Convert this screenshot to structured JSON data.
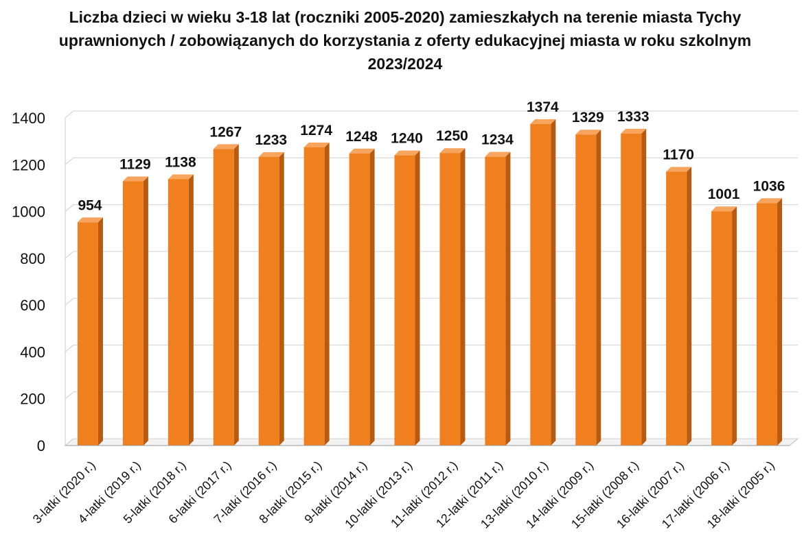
{
  "chart_data": {
    "type": "bar3d",
    "title": "Liczba dzieci w wieku 3-18 lat (roczniki 2005-2020) zamieszkałych na terenie miasta Tychy uprawnionych / zobowiązanych do korzystania z oferty edukacyjnej miasta w roku szkolnym 2023/2024",
    "categories": [
      "3-latki (2020 r.)",
      "4-latki (2019 r.)",
      "5-latki (2018 r.)",
      "6-latki (2017 r.)",
      "7-latki (2016 r.)",
      "8-latki (2015 r.)",
      "9-latki (2014 r.)",
      "10-latki (2013 r.)",
      "11-latki (2012 r.)",
      "12-latki (2011 r.)",
      "13-latki (2010 r.)",
      "14-latki (2009 r.)",
      "15-latki (2008 r.)",
      "16-latki (2007 r.)",
      "17-latki (2006 r.)",
      "18-latki (2005 r.)"
    ],
    "values": [
      954,
      1129,
      1138,
      1267,
      1233,
      1274,
      1248,
      1240,
      1250,
      1234,
      1374,
      1329,
      1333,
      1170,
      1001,
      1036
    ],
    "color": "#f07f1e",
    "ylim": [
      0,
      1400
    ],
    "yticks": [
      0,
      200,
      400,
      600,
      800,
      1000,
      1200,
      1400
    ],
    "grid": true
  }
}
